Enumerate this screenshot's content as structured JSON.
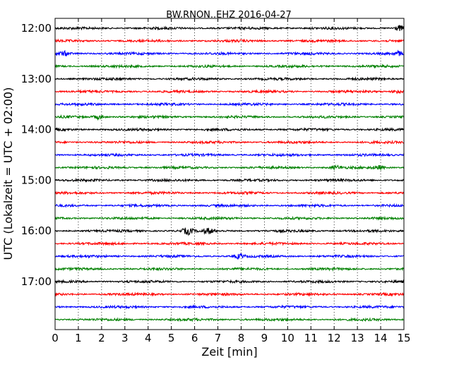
{
  "chart_data": {
    "type": "line",
    "title": "BW.RNON..EHZ 2016-04-27",
    "xlabel": "Zeit  [min]",
    "ylabel": "UTC (Lokalzeit = UTC + 02:00)",
    "xlim": [
      0,
      15
    ],
    "x_ticks": [
      "0",
      "1",
      "2",
      "3",
      "4",
      "5",
      "6",
      "7",
      "8",
      "9",
      "10",
      "11",
      "12",
      "13",
      "14",
      "15"
    ],
    "y_ticks": [
      "12:00",
      "13:00",
      "14:00",
      "15:00",
      "16:00",
      "17:00"
    ],
    "grid": "vertical dotted",
    "trace_start": "12:00",
    "trace_interval_min": 15,
    "trace_count": 24,
    "colors": [
      "#000000",
      "#ff0000",
      "#0000ff",
      "#008000"
    ],
    "events": [
      {
        "trace": "13:45",
        "minute": 1.9,
        "amp": 3
      },
      {
        "trace": "14:45",
        "minute": 12.1,
        "amp": 2.2
      },
      {
        "trace": "14:45",
        "minute": 13.9,
        "amp": 2.5
      },
      {
        "trace": "16:00",
        "minute": 5.7,
        "amp": 4.5
      },
      {
        "trace": "16:00",
        "minute": 6.6,
        "amp": 3.5
      },
      {
        "trace": "16:30",
        "minute": 7.9,
        "amp": 3
      },
      {
        "trace": "12:00",
        "minute": 14.8,
        "amp": 3.5
      },
      {
        "trace": "12:30",
        "minute": 0.4,
        "amp": 2.5
      },
      {
        "trace": "12:30",
        "minute": 14.8,
        "amp": 2.5
      },
      {
        "trace": "13:15",
        "minute": 14.7,
        "amp": 2.2
      }
    ]
  }
}
